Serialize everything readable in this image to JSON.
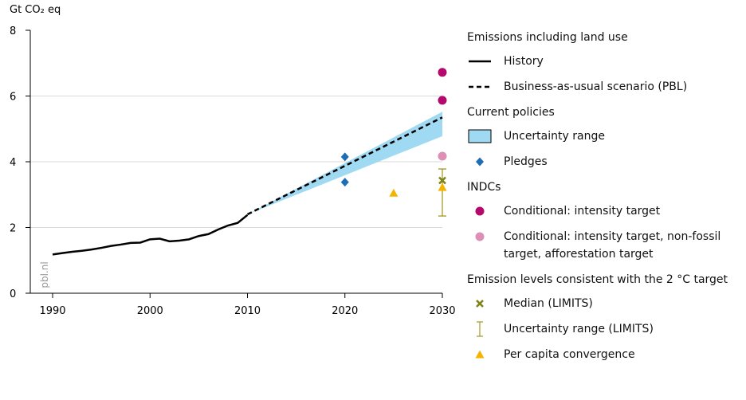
{
  "chart_data": {
    "type": "combo",
    "y_label": "Gt CO₂ eq",
    "watermark": "pbl.nl",
    "xlim": [
      1990,
      2030
    ],
    "xticks": [
      1990,
      2000,
      2010,
      2020,
      2030
    ],
    "ylim": [
      0,
      8
    ],
    "yticks": [
      0,
      2,
      4,
      6,
      8
    ],
    "grid": true,
    "groups": [
      {
        "title": "Emissions including land use",
        "series": [
          {
            "name": "History",
            "type": "line",
            "color": "#000000",
            "x": [
              1990,
              1991,
              1992,
              1993,
              1994,
              1995,
              1996,
              1997,
              1998,
              1999,
              2000,
              2001,
              2002,
              2003,
              2004,
              2005,
              2006,
              2007,
              2008,
              2009,
              2010
            ],
            "values": [
              1.18,
              1.22,
              1.26,
              1.29,
              1.33,
              1.38,
              1.44,
              1.48,
              1.53,
              1.54,
              1.64,
              1.66,
              1.58,
              1.6,
              1.64,
              1.74,
              1.8,
              1.94,
              2.06,
              2.14,
              2.38
            ]
          },
          {
            "name": "Business-as-usual scenario (PBL)",
            "type": "dashed",
            "color": "#000000",
            "x": [
              2010,
              2030
            ],
            "values": [
              2.4,
              5.35
            ]
          }
        ]
      },
      {
        "title": "Current policies",
        "series": [
          {
            "name": "Uncertainty range",
            "type": "band",
            "color": "#9fd9f2",
            "x": [
              2010,
              2030
            ],
            "low": [
              2.4,
              4.78
            ],
            "high": [
              2.4,
              5.52
            ]
          },
          {
            "name": "Pledges",
            "type": "scatter",
            "marker": "diamond",
            "color": "#1f6db4",
            "x": [
              2020,
              2020
            ],
            "values": [
              4.15,
              3.38
            ]
          }
        ]
      },
      {
        "title": "INDCs",
        "series": [
          {
            "name": "Conditional: intensity target",
            "type": "scatter",
            "marker": "circle",
            "color": "#b5086d",
            "x": [
              2030,
              2030
            ],
            "values": [
              6.72,
              5.87
            ]
          },
          {
            "name": "Conditional: intensity target, non-fossil target, afforestation target",
            "type": "scatter",
            "marker": "circle",
            "color": "#de8fb6",
            "x": [
              2030
            ],
            "values": [
              4.17
            ]
          }
        ]
      },
      {
        "title": "Emission levels consistent with the 2 °C target",
        "series": [
          {
            "name": "Median (LIMITS)",
            "type": "scatter",
            "marker": "cross",
            "color": "#7f8417",
            "x": [
              2030
            ],
            "values": [
              3.43
            ]
          },
          {
            "name": "Uncertainty range (LIMITS)",
            "type": "errorbar",
            "color": "#a39e2a",
            "x": [
              2030
            ],
            "low": [
              2.35
            ],
            "high": [
              3.78
            ]
          },
          {
            "name": "Per capita convergence",
            "type": "scatter",
            "marker": "triangle",
            "color": "#f4b400",
            "x": [
              2025,
              2030
            ],
            "values": [
              3.05,
              3.22
            ]
          }
        ]
      }
    ]
  }
}
